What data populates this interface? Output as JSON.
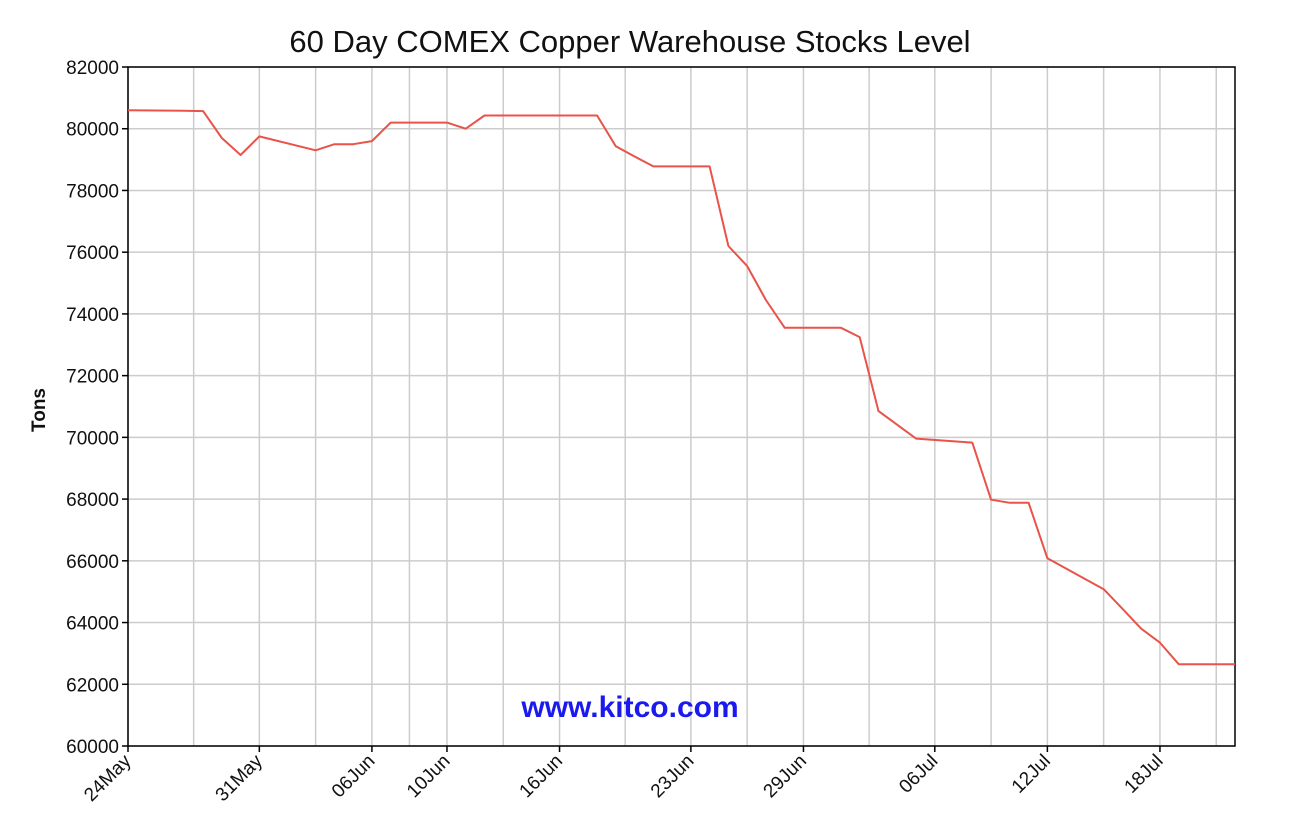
{
  "colors": {
    "series": "#e8534a",
    "watermark": "#1a1aee"
  },
  "chart_data": {
    "type": "line",
    "title": "60 Day COMEX Copper Warehouse Stocks Level",
    "xlabel": "",
    "ylabel": "Tons",
    "watermark": "www.kitco.com",
    "ylim": [
      60000,
      82000
    ],
    "yticks": [
      60000,
      62000,
      64000,
      66000,
      68000,
      70000,
      72000,
      74000,
      76000,
      78000,
      80000,
      82000
    ],
    "xlim": [
      "24May",
      "22Jul"
    ],
    "xticks": [
      "24May",
      "31May",
      "06Jun",
      "10Jun",
      "16Jun",
      "23Jun",
      "29Jun",
      "06Jul",
      "12Jul",
      "18Jul"
    ],
    "grid": true,
    "legend": "none",
    "series": [
      {
        "x": [
          "24May",
          "27May",
          "28May",
          "29May",
          "30May",
          "31May",
          "03Jun",
          "04Jun",
          "05Jun",
          "06Jun",
          "07Jun",
          "10Jun",
          "11Jun",
          "12Jun",
          "13Jun",
          "14Jun",
          "17Jun",
          "18Jun",
          "19Jun",
          "20Jun",
          "21Jun",
          "24Jun",
          "25Jun",
          "26Jun",
          "27Jun",
          "28Jun",
          "01Jul",
          "02Jul",
          "03Jul",
          "05Jul",
          "08Jul",
          "09Jul",
          "10Jul",
          "11Jul",
          "12Jul",
          "15Jul",
          "16Jul",
          "17Jul",
          "18Jul",
          "19Jul",
          "22Jul"
        ],
        "values": [
          80600,
          80580,
          80570,
          79700,
          79150,
          79750,
          79300,
          79500,
          79500,
          79600,
          80200,
          80200,
          80000,
          80430,
          80430,
          80430,
          80430,
          80430,
          79430,
          79100,
          78780,
          78780,
          76200,
          75550,
          74450,
          73550,
          73550,
          73250,
          70850,
          69960,
          69830,
          67980,
          67880,
          67880,
          66080,
          65080,
          64450,
          63800,
          63350,
          62650,
          62650
        ]
      }
    ]
  }
}
